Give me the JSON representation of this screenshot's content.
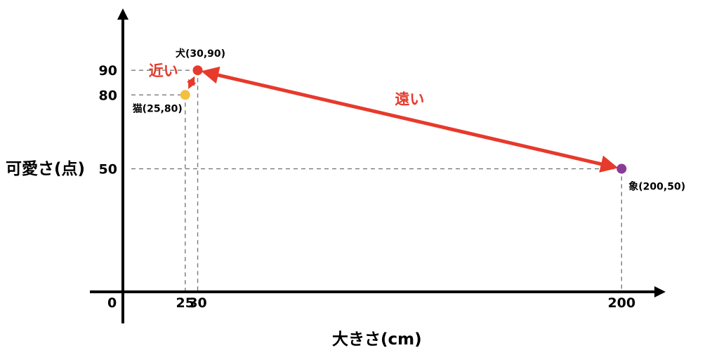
{
  "chart_data": {
    "type": "scatter",
    "xlabel": "大きさ(cm)",
    "ylabel": "可愛さ(点)",
    "origin_label": "0",
    "xlim": [
      0,
      214
    ],
    "ylim": [
      0,
      114
    ],
    "x_ticks": [
      "25",
      "30",
      "200"
    ],
    "y_ticks": [
      "50",
      "80",
      "90"
    ],
    "points": [
      {
        "name": "猫",
        "label": "猫(25,80)",
        "x": 25,
        "y": 80,
        "color": "#f5c040"
      },
      {
        "name": "犬",
        "label": "犬(30,90)",
        "x": 30,
        "y": 90,
        "color": "#e63a2c"
      },
      {
        "name": "象",
        "label": "象(200,50)",
        "x": 200,
        "y": 50,
        "color": "#8a3a97"
      }
    ],
    "annotations": [
      {
        "text": "近い",
        "between": [
          "猫",
          "犬"
        ],
        "color": "#e63a2c"
      },
      {
        "text": "遠い",
        "between": [
          "犬",
          "象"
        ],
        "color": "#e63a2c"
      }
    ]
  }
}
